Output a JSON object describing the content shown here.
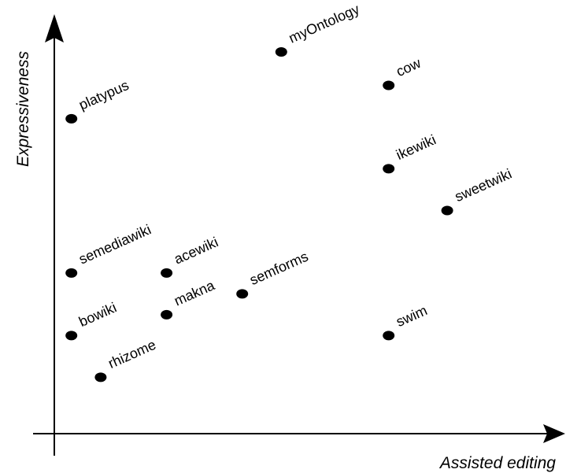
{
  "chart_data": {
    "type": "scatter",
    "title": "",
    "xlabel": "Assisted editing",
    "ylabel": "Expressiveness",
    "xlim": [
      0,
      10
    ],
    "ylim": [
      0,
      10
    ],
    "grid": false,
    "legend": "none",
    "ticks": false,
    "point_color": "#000000",
    "points": [
      {
        "label": "myOntology",
        "x": 4.65,
        "y": 9.15
      },
      {
        "label": "cow",
        "x": 6.85,
        "y": 8.35
      },
      {
        "label": "platypus",
        "x": 0.35,
        "y": 7.55
      },
      {
        "label": "ikewiki",
        "x": 6.85,
        "y": 6.35
      },
      {
        "label": "sweetwiki",
        "x": 8.05,
        "y": 5.35
      },
      {
        "label": "semediawiki",
        "x": 0.35,
        "y": 3.85
      },
      {
        "label": "acewiki",
        "x": 2.3,
        "y": 3.85
      },
      {
        "label": "semforms",
        "x": 3.85,
        "y": 3.35
      },
      {
        "label": "makna",
        "x": 2.3,
        "y": 2.85
      },
      {
        "label": "bowiki",
        "x": 0.35,
        "y": 2.35
      },
      {
        "label": "swim",
        "x": 6.85,
        "y": 2.35
      },
      {
        "label": "rhizome",
        "x": 0.95,
        "y": 1.35
      }
    ]
  }
}
